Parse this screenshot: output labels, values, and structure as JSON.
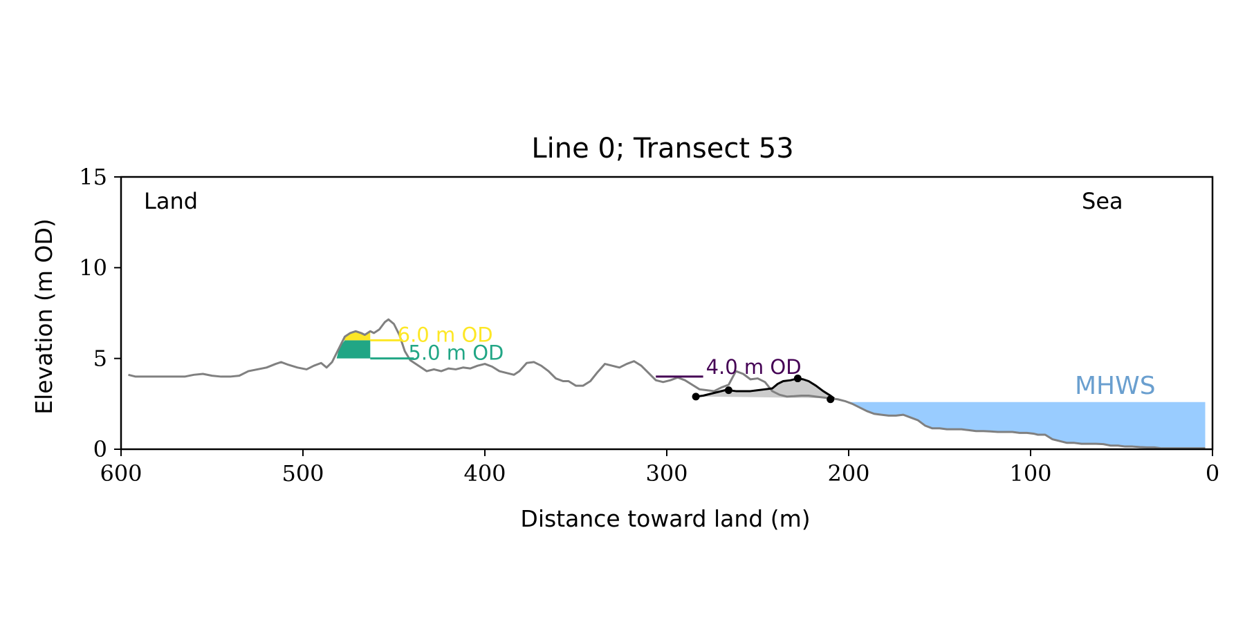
{
  "chart_data": {
    "type": "line",
    "title": "Line 0; Transect 53",
    "xlabel": "Distance toward land (m)",
    "ylabel": "Elevation (m OD)",
    "xlim": [
      600,
      0
    ],
    "ylim": [
      0,
      15
    ],
    "x_ticks": [
      "600",
      "500",
      "400",
      "300",
      "200",
      "100",
      "0"
    ],
    "y_ticks": [
      "0",
      "5",
      "10",
      "15"
    ],
    "grid": false,
    "annotations": {
      "land": "Land",
      "sea": "Sea",
      "mhws_label": "MHWS"
    },
    "colors": {
      "profile": "#808080",
      "dune": "#000000",
      "dune_fill": "#cccccc",
      "mhws": "#99ccff",
      "mhws_text": "#6a9fcf",
      "level_6": "#fde725",
      "level_5": "#21a685",
      "level_4": "#440154"
    },
    "mhws": 2.6,
    "profile": [
      [
        596,
        4.1
      ],
      [
        592,
        4.0
      ],
      [
        584,
        4.0
      ],
      [
        575,
        4.0
      ],
      [
        565,
        4.0
      ],
      [
        560,
        4.1
      ],
      [
        555,
        4.15
      ],
      [
        550,
        4.05
      ],
      [
        545,
        4.0
      ],
      [
        540,
        4.0
      ],
      [
        535,
        4.05
      ],
      [
        530,
        4.3
      ],
      [
        525,
        4.4
      ],
      [
        520,
        4.5
      ],
      [
        515,
        4.7
      ],
      [
        512,
        4.8
      ],
      [
        508,
        4.65
      ],
      [
        503,
        4.5
      ],
      [
        498,
        4.4
      ],
      [
        494,
        4.6
      ],
      [
        490,
        4.75
      ],
      [
        487,
        4.5
      ],
      [
        484,
        4.8
      ],
      [
        480,
        5.6
      ],
      [
        477,
        6.2
      ],
      [
        474,
        6.4
      ],
      [
        471,
        6.5
      ],
      [
        468,
        6.4
      ],
      [
        466,
        6.3
      ],
      [
        463,
        6.5
      ],
      [
        461,
        6.4
      ],
      [
        458,
        6.6
      ],
      [
        455,
        7.0
      ],
      [
        453,
        7.15
      ],
      [
        450,
        6.9
      ],
      [
        447,
        6.3
      ],
      [
        444,
        5.4
      ],
      [
        441,
        4.9
      ],
      [
        438,
        4.7
      ],
      [
        435,
        4.5
      ],
      [
        432,
        4.3
      ],
      [
        428,
        4.4
      ],
      [
        424,
        4.3
      ],
      [
        420,
        4.45
      ],
      [
        416,
        4.4
      ],
      [
        412,
        4.5
      ],
      [
        408,
        4.45
      ],
      [
        404,
        4.6
      ],
      [
        400,
        4.7
      ],
      [
        396,
        4.55
      ],
      [
        392,
        4.3
      ],
      [
        388,
        4.2
      ],
      [
        384,
        4.1
      ],
      [
        381,
        4.3
      ],
      [
        377,
        4.75
      ],
      [
        373,
        4.8
      ],
      [
        369,
        4.6
      ],
      [
        365,
        4.3
      ],
      [
        361,
        3.9
      ],
      [
        357,
        3.75
      ],
      [
        354,
        3.75
      ],
      [
        350,
        3.5
      ],
      [
        346,
        3.5
      ],
      [
        342,
        3.75
      ],
      [
        338,
        4.25
      ],
      [
        334,
        4.7
      ],
      [
        330,
        4.6
      ],
      [
        326,
        4.5
      ],
      [
        322,
        4.7
      ],
      [
        318,
        4.85
      ],
      [
        314,
        4.6
      ],
      [
        310,
        4.2
      ],
      [
        306,
        3.8
      ],
      [
        302,
        3.7
      ],
      [
        298,
        3.8
      ],
      [
        294,
        3.95
      ],
      [
        290,
        3.8
      ],
      [
        286,
        3.55
      ],
      [
        282,
        3.3
      ],
      [
        278,
        3.25
      ],
      [
        274,
        3.2
      ],
      [
        270,
        3.4
      ],
      [
        266,
        3.55
      ],
      [
        262,
        4.3
      ],
      [
        258,
        4.15
      ],
      [
        254,
        3.85
      ],
      [
        250,
        3.9
      ],
      [
        246,
        3.7
      ],
      [
        242,
        3.2
      ],
      [
        238,
        3.0
      ],
      [
        234,
        2.9
      ],
      [
        230,
        2.92
      ],
      [
        226,
        2.95
      ],
      [
        222,
        2.95
      ],
      [
        218,
        2.9
      ],
      [
        214,
        2.85
      ],
      [
        210,
        2.8
      ],
      [
        206,
        2.75
      ],
      [
        202,
        2.65
      ],
      [
        198,
        2.5
      ],
      [
        194,
        2.3
      ],
      [
        190,
        2.1
      ],
      [
        186,
        1.95
      ],
      [
        182,
        1.9
      ],
      [
        178,
        1.85
      ],
      [
        174,
        1.85
      ],
      [
        170,
        1.9
      ],
      [
        166,
        1.75
      ],
      [
        162,
        1.6
      ],
      [
        158,
        1.3
      ],
      [
        154,
        1.15
      ],
      [
        150,
        1.15
      ],
      [
        146,
        1.1
      ],
      [
        142,
        1.1
      ],
      [
        138,
        1.1
      ],
      [
        134,
        1.05
      ],
      [
        130,
        1.0
      ],
      [
        126,
        1.0
      ],
      [
        122,
        0.98
      ],
      [
        118,
        0.95
      ],
      [
        114,
        0.95
      ],
      [
        110,
        0.95
      ],
      [
        106,
        0.9
      ],
      [
        102,
        0.9
      ],
      [
        98,
        0.85
      ],
      [
        96,
        0.8
      ],
      [
        92,
        0.8
      ],
      [
        88,
        0.55
      ],
      [
        84,
        0.45
      ],
      [
        80,
        0.35
      ],
      [
        76,
        0.35
      ],
      [
        72,
        0.3
      ],
      [
        68,
        0.3
      ],
      [
        64,
        0.3
      ],
      [
        60,
        0.28
      ],
      [
        56,
        0.2
      ],
      [
        52,
        0.2
      ],
      [
        48,
        0.15
      ],
      [
        44,
        0.15
      ],
      [
        40,
        0.12
      ],
      [
        36,
        0.1
      ],
      [
        32,
        0.1
      ],
      [
        28,
        0.05
      ],
      [
        24,
        0.05
      ],
      [
        20,
        0.05
      ],
      [
        16,
        0.05
      ],
      [
        12,
        0.05
      ],
      [
        8,
        0.05
      ],
      [
        4,
        0.05
      ]
    ],
    "dune_crest": [
      [
        284,
        2.9
      ],
      [
        280,
        2.95
      ],
      [
        276,
        3.05
      ],
      [
        272,
        3.15
      ],
      [
        268,
        3.25
      ],
      [
        266,
        3.25
      ],
      [
        262,
        3.2
      ],
      [
        258,
        3.2
      ],
      [
        254,
        3.2
      ],
      [
        250,
        3.25
      ],
      [
        246,
        3.3
      ],
      [
        242,
        3.35
      ],
      [
        239,
        3.6
      ],
      [
        236,
        3.75
      ],
      [
        232,
        3.8
      ],
      [
        228,
        3.9
      ],
      [
        225,
        3.85
      ],
      [
        222,
        3.75
      ],
      [
        218,
        3.5
      ],
      [
        214,
        3.2
      ],
      [
        210,
        2.95
      ],
      [
        208,
        2.8
      ]
    ],
    "dune_toe_line": [
      [
        284,
        2.9
      ],
      [
        260,
        2.88
      ],
      [
        240,
        2.85
      ],
      [
        220,
        2.82
      ],
      [
        208,
        2.8
      ]
    ],
    "dune_points": [
      [
        284,
        2.9
      ],
      [
        266,
        3.25
      ],
      [
        228,
        3.9
      ],
      [
        210,
        2.75
      ]
    ],
    "levels": [
      {
        "value": 6.0,
        "label": "6.0 m OD",
        "color": "#fde725",
        "x_start": 463,
        "x_end": 445
      },
      {
        "value": 5.0,
        "label": "5.0 m OD",
        "color": "#21a685",
        "x_start": 463,
        "x_end": 439
      },
      {
        "value": 4.0,
        "label": "4.0 m OD",
        "color": "#440154",
        "x_start": 306,
        "x_end": 280
      }
    ],
    "fill_bands": [
      {
        "bottom": 5.0,
        "top": 6.0,
        "color": "#21a685",
        "x_from": 491,
        "x_to": 463
      },
      {
        "bottom": 6.0,
        "top": 7.15,
        "color": "#fde725",
        "x_from": 491,
        "x_to": 463
      }
    ]
  }
}
